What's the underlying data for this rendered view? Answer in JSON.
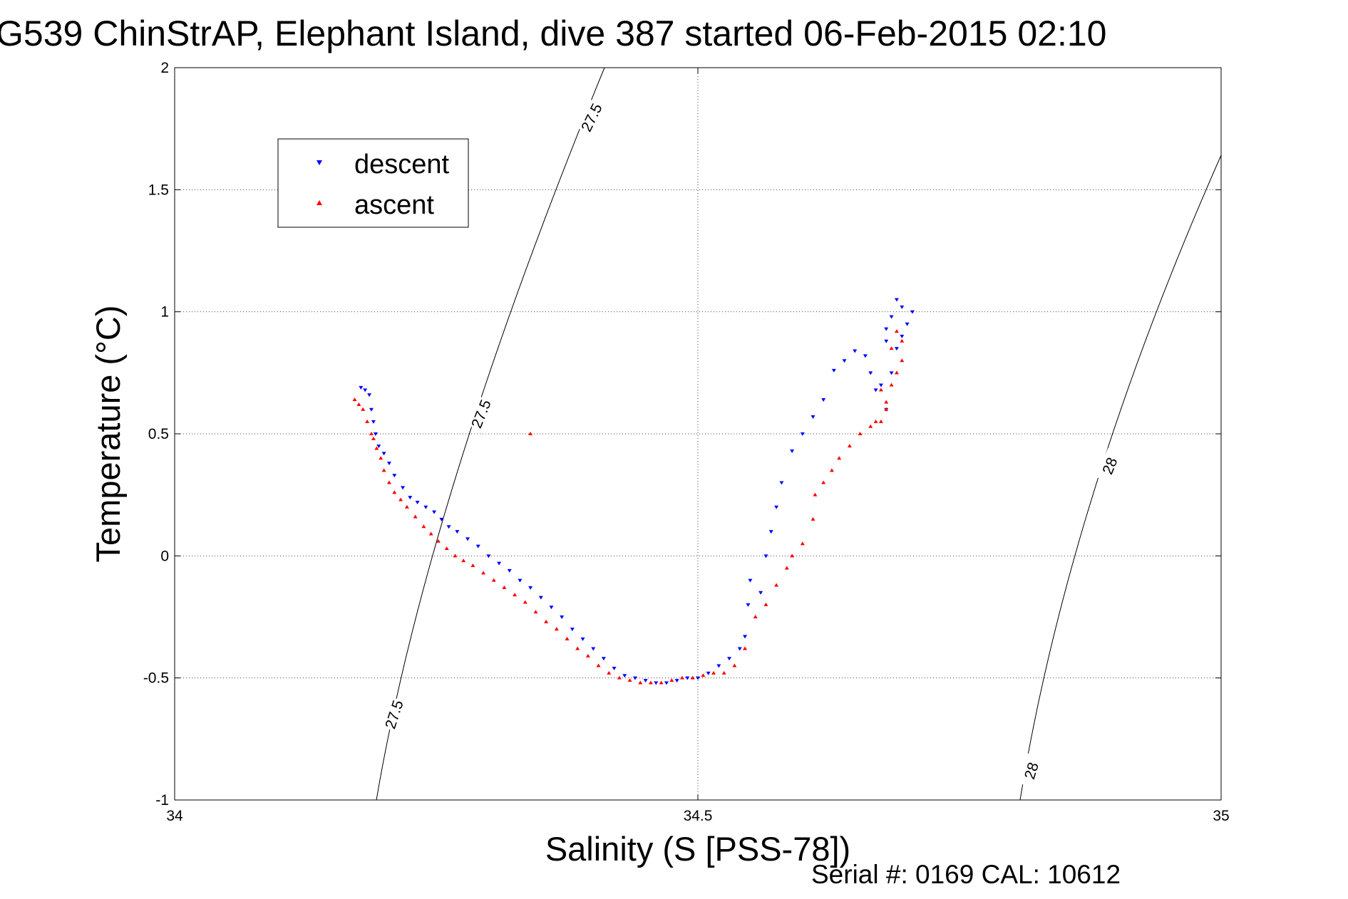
{
  "chart_data": {
    "type": "scatter",
    "title": "G539 ChinStrAP, Elephant Island, dive 387 started 06-Feb-2015 02:10",
    "xlabel": "Salinity (S [PSS-78])",
    "ylabel": "Temperature (°C)",
    "xlim": [
      34,
      35
    ],
    "ylim": [
      -1,
      2
    ],
    "x_ticks": [
      34,
      34.5,
      35
    ],
    "x_tick_labels": [
      "34",
      "34.5",
      "35"
    ],
    "y_ticks": [
      -1,
      -0.5,
      0,
      0.5,
      1,
      1.5,
      2
    ],
    "y_tick_labels": [
      "-1",
      "-0.5",
      "0",
      "0.5",
      "1",
      "1.5",
      "2"
    ],
    "grid": true,
    "legend_position": "top-left",
    "footer": "Serial #: 0169 CAL: 10612",
    "series": [
      {
        "name": "descent",
        "marker": "down-triangle",
        "color": "#0000ff",
        "x": [
          34.178,
          34.182,
          34.186,
          34.188,
          34.19,
          34.192,
          34.195,
          34.2,
          34.205,
          34.21,
          34.218,
          34.225,
          34.232,
          34.24,
          34.248,
          34.255,
          34.262,
          34.27,
          34.28,
          34.29,
          34.3,
          34.31,
          34.32,
          34.33,
          34.34,
          34.35,
          34.36,
          34.37,
          34.38,
          34.39,
          34.4,
          34.41,
          34.42,
          34.43,
          34.44,
          34.45,
          34.46,
          34.47,
          34.48,
          34.49,
          34.5,
          34.51,
          34.52,
          34.53,
          34.54,
          34.545,
          34.548,
          34.55,
          34.56,
          34.565,
          34.57,
          34.575,
          34.58,
          34.59,
          34.6,
          34.61,
          34.62,
          34.63,
          34.64,
          34.65,
          34.66,
          34.665,
          34.67,
          34.675,
          34.68,
          34.685,
          34.69,
          34.695,
          34.7,
          34.705,
          34.695,
          34.69,
          34.685,
          34.68,
          34.68
        ],
        "y": [
          0.69,
          0.68,
          0.66,
          0.6,
          0.55,
          0.5,
          0.45,
          0.42,
          0.38,
          0.33,
          0.28,
          0.24,
          0.22,
          0.2,
          0.18,
          0.15,
          0.12,
          0.1,
          0.07,
          0.04,
          0.0,
          -0.03,
          -0.06,
          -0.1,
          -0.13,
          -0.17,
          -0.21,
          -0.25,
          -0.3,
          -0.34,
          -0.38,
          -0.42,
          -0.46,
          -0.49,
          -0.5,
          -0.51,
          -0.52,
          -0.52,
          -0.51,
          -0.5,
          -0.5,
          -0.48,
          -0.45,
          -0.42,
          -0.38,
          -0.33,
          -0.2,
          -0.1,
          -0.15,
          0.0,
          0.1,
          0.2,
          0.3,
          0.43,
          0.5,
          0.57,
          0.64,
          0.76,
          0.8,
          0.84,
          0.82,
          0.75,
          0.68,
          0.7,
          0.6,
          0.75,
          0.85,
          0.9,
          0.95,
          1.0,
          1.02,
          1.05,
          0.98,
          0.93,
          0.88
        ]
      },
      {
        "name": "ascent",
        "marker": "up-triangle",
        "color": "#ff0000",
        "x": [
          34.172,
          34.176,
          34.18,
          34.184,
          34.188,
          34.19,
          34.193,
          34.197,
          34.2,
          34.205,
          34.21,
          34.216,
          34.222,
          34.23,
          34.238,
          34.245,
          34.252,
          34.26,
          34.268,
          34.276,
          34.285,
          34.295,
          34.305,
          34.315,
          34.325,
          34.335,
          34.345,
          34.355,
          34.365,
          34.375,
          34.385,
          34.395,
          34.405,
          34.415,
          34.425,
          34.435,
          34.445,
          34.455,
          34.465,
          34.475,
          34.485,
          34.495,
          34.505,
          34.515,
          34.525,
          34.535,
          34.545,
          34.555,
          34.565,
          34.575,
          34.585,
          34.59,
          34.6,
          34.61,
          34.612,
          34.62,
          34.628,
          34.635,
          34.645,
          34.655,
          34.665,
          34.67,
          34.675,
          34.68,
          34.685,
          34.69,
          34.695,
          34.695,
          34.69,
          34.685,
          34.675,
          34.68,
          34.34
        ],
        "y": [
          0.64,
          0.62,
          0.6,
          0.55,
          0.5,
          0.48,
          0.44,
          0.4,
          0.35,
          0.3,
          0.26,
          0.23,
          0.2,
          0.16,
          0.12,
          0.09,
          0.06,
          0.03,
          0.0,
          -0.02,
          -0.04,
          -0.07,
          -0.1,
          -0.13,
          -0.16,
          -0.19,
          -0.23,
          -0.27,
          -0.3,
          -0.34,
          -0.38,
          -0.41,
          -0.45,
          -0.48,
          -0.5,
          -0.51,
          -0.52,
          -0.52,
          -0.52,
          -0.51,
          -0.5,
          -0.5,
          -0.49,
          -0.48,
          -0.48,
          -0.45,
          -0.38,
          -0.25,
          -0.2,
          -0.12,
          -0.05,
          0.0,
          0.05,
          0.15,
          0.25,
          0.3,
          0.35,
          0.4,
          0.45,
          0.5,
          0.53,
          0.55,
          0.55,
          0.6,
          0.7,
          0.75,
          0.8,
          0.88,
          0.92,
          0.85,
          0.68,
          0.63,
          0.5
        ]
      }
    ],
    "isopycnals": [
      {
        "label": "27.5",
        "label_count": 3
      },
      {
        "label": "28",
        "label_count": 2
      }
    ]
  }
}
